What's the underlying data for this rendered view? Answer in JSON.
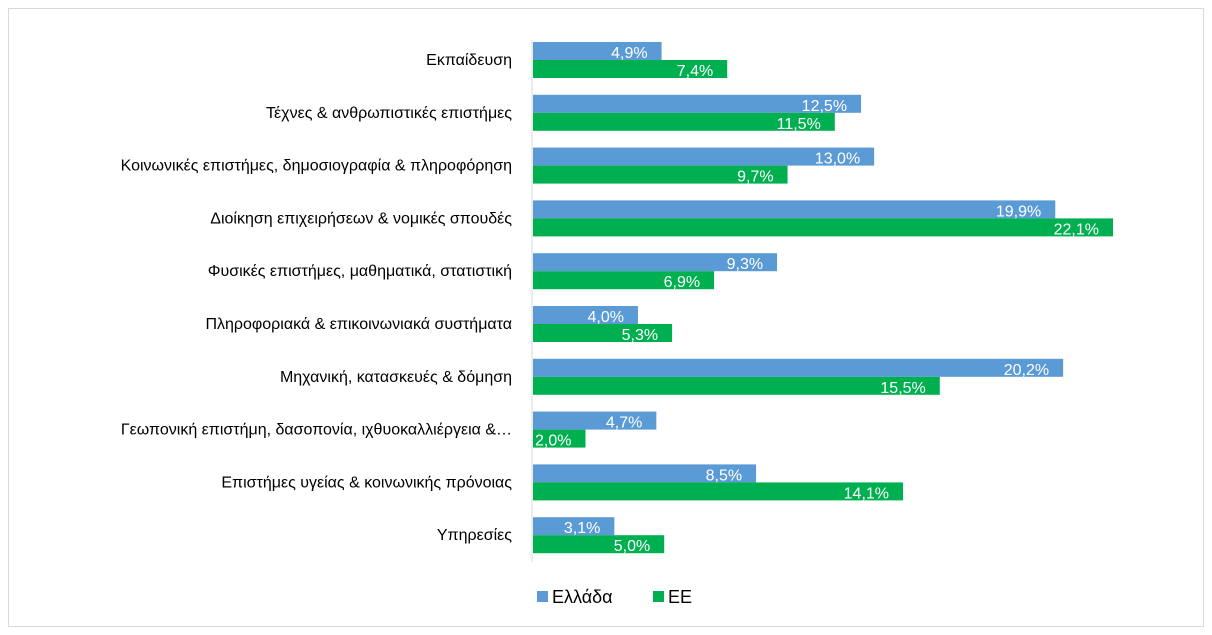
{
  "chart_data": {
    "type": "bar",
    "orientation": "horizontal",
    "title": "",
    "xlabel": "",
    "ylabel": "",
    "xlim": [
      0,
      22.1
    ],
    "grid": false,
    "legend_position": "bottom",
    "categories": [
      "Εκπαίδευση",
      "Τέχνες & ανθρωπιστικές επιστήμες",
      "Κοινωνικές επιστήμες, δημοσιογραφία & πληροφόρηση",
      "Διοίκηση επιχειρήσεων & νομικές σπουδές",
      "Φυσικές επιστήμες, μαθηματικά, στατιστική",
      "Πληροφοριακά & επικοινωνιακά συστήματα",
      "Μηχανική, κατασκευές & δόμηση",
      "Γεωπονική επιστήμη, δασοπονία, ιχθυοκαλλιέργεια &…",
      "Επιστήμες υγείας & κοινωνικής πρόνοιας",
      "Υπηρεσίες"
    ],
    "series": [
      {
        "name": "Ελλάδα",
        "color": "#5b9bd5",
        "values": [
          4.9,
          12.5,
          13.0,
          19.9,
          9.3,
          4.0,
          20.2,
          4.7,
          8.5,
          3.1
        ],
        "labels": [
          "4,9%",
          "12,5%",
          "13,0%",
          "19,9%",
          "9,3%",
          "4,0%",
          "20,2%",
          "4,7%",
          "8,5%",
          "3,1%"
        ]
      },
      {
        "name": "ΕΕ",
        "color": "#00b050",
        "values": [
          7.4,
          11.5,
          9.7,
          22.1,
          6.9,
          5.3,
          15.5,
          2.0,
          14.1,
          5.0
        ],
        "labels": [
          "7,4%",
          "11,5%",
          "9,7%",
          "22,1%",
          "6,9%",
          "5,3%",
          "15,5%",
          "2,0%",
          "14,1%",
          "5,0%"
        ]
      }
    ]
  }
}
